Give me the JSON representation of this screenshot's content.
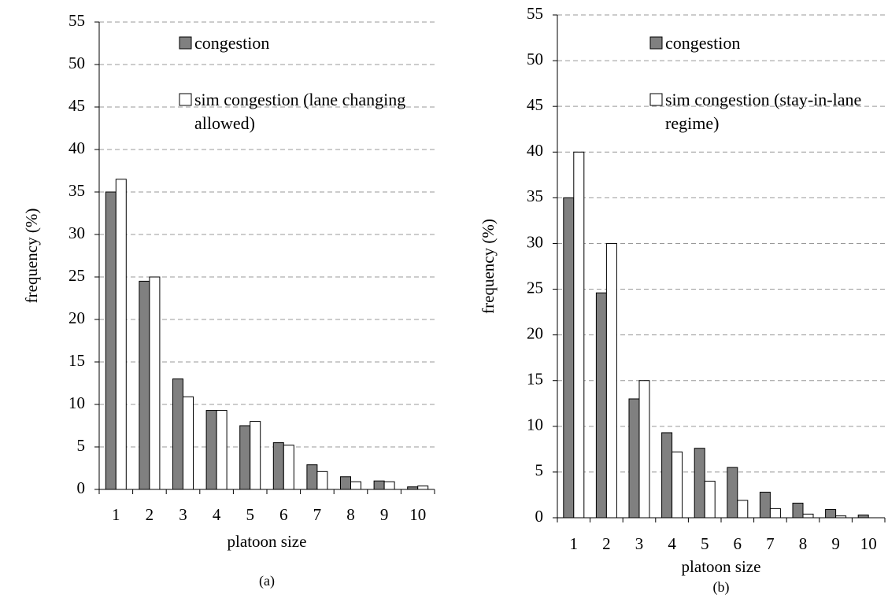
{
  "chart_data": [
    {
      "type": "bar",
      "caption": "(a)",
      "x_label": "platoon size",
      "y_label": "frequency (%)",
      "categories": [
        "1",
        "2",
        "3",
        "4",
        "5",
        "6",
        "7",
        "8",
        "9",
        "10"
      ],
      "series": [
        {
          "name": "congestion",
          "color": "#808080",
          "values": [
            35,
            24.5,
            13,
            9.3,
            7.5,
            5.5,
            2.9,
            1.5,
            1,
            0.3
          ]
        },
        {
          "name": "sim congestion (lane changing allowed)",
          "color": "#ffffff",
          "values": [
            36.5,
            25,
            10.9,
            9.3,
            8,
            5.2,
            2.1,
            0.9,
            0.9,
            0.4
          ]
        }
      ],
      "ylim": [
        0,
        55
      ],
      "yticks": [
        0,
        5,
        10,
        15,
        20,
        25,
        30,
        35,
        40,
        45,
        50,
        55
      ],
      "grid": true
    },
    {
      "type": "bar",
      "caption": "(b)",
      "x_label": "platoon size",
      "y_label": "frequency (%)",
      "categories": [
        "1",
        "2",
        "3",
        "4",
        "5",
        "6",
        "7",
        "8",
        "9",
        "10"
      ],
      "series": [
        {
          "name": "congestion",
          "color": "#808080",
          "values": [
            35,
            24.6,
            13,
            9.3,
            7.6,
            5.5,
            2.8,
            1.6,
            0.9,
            0.3
          ]
        },
        {
          "name": "sim congestion (stay-in-lane regime)",
          "color": "#ffffff",
          "values": [
            40,
            30,
            15,
            7.2,
            4,
            1.9,
            1,
            0.4,
            0.2,
            0
          ]
        }
      ],
      "ylim": [
        0,
        55
      ],
      "yticks": [
        0,
        5,
        10,
        15,
        20,
        25,
        30,
        35,
        40,
        45,
        50,
        55
      ],
      "grid": true
    }
  ]
}
